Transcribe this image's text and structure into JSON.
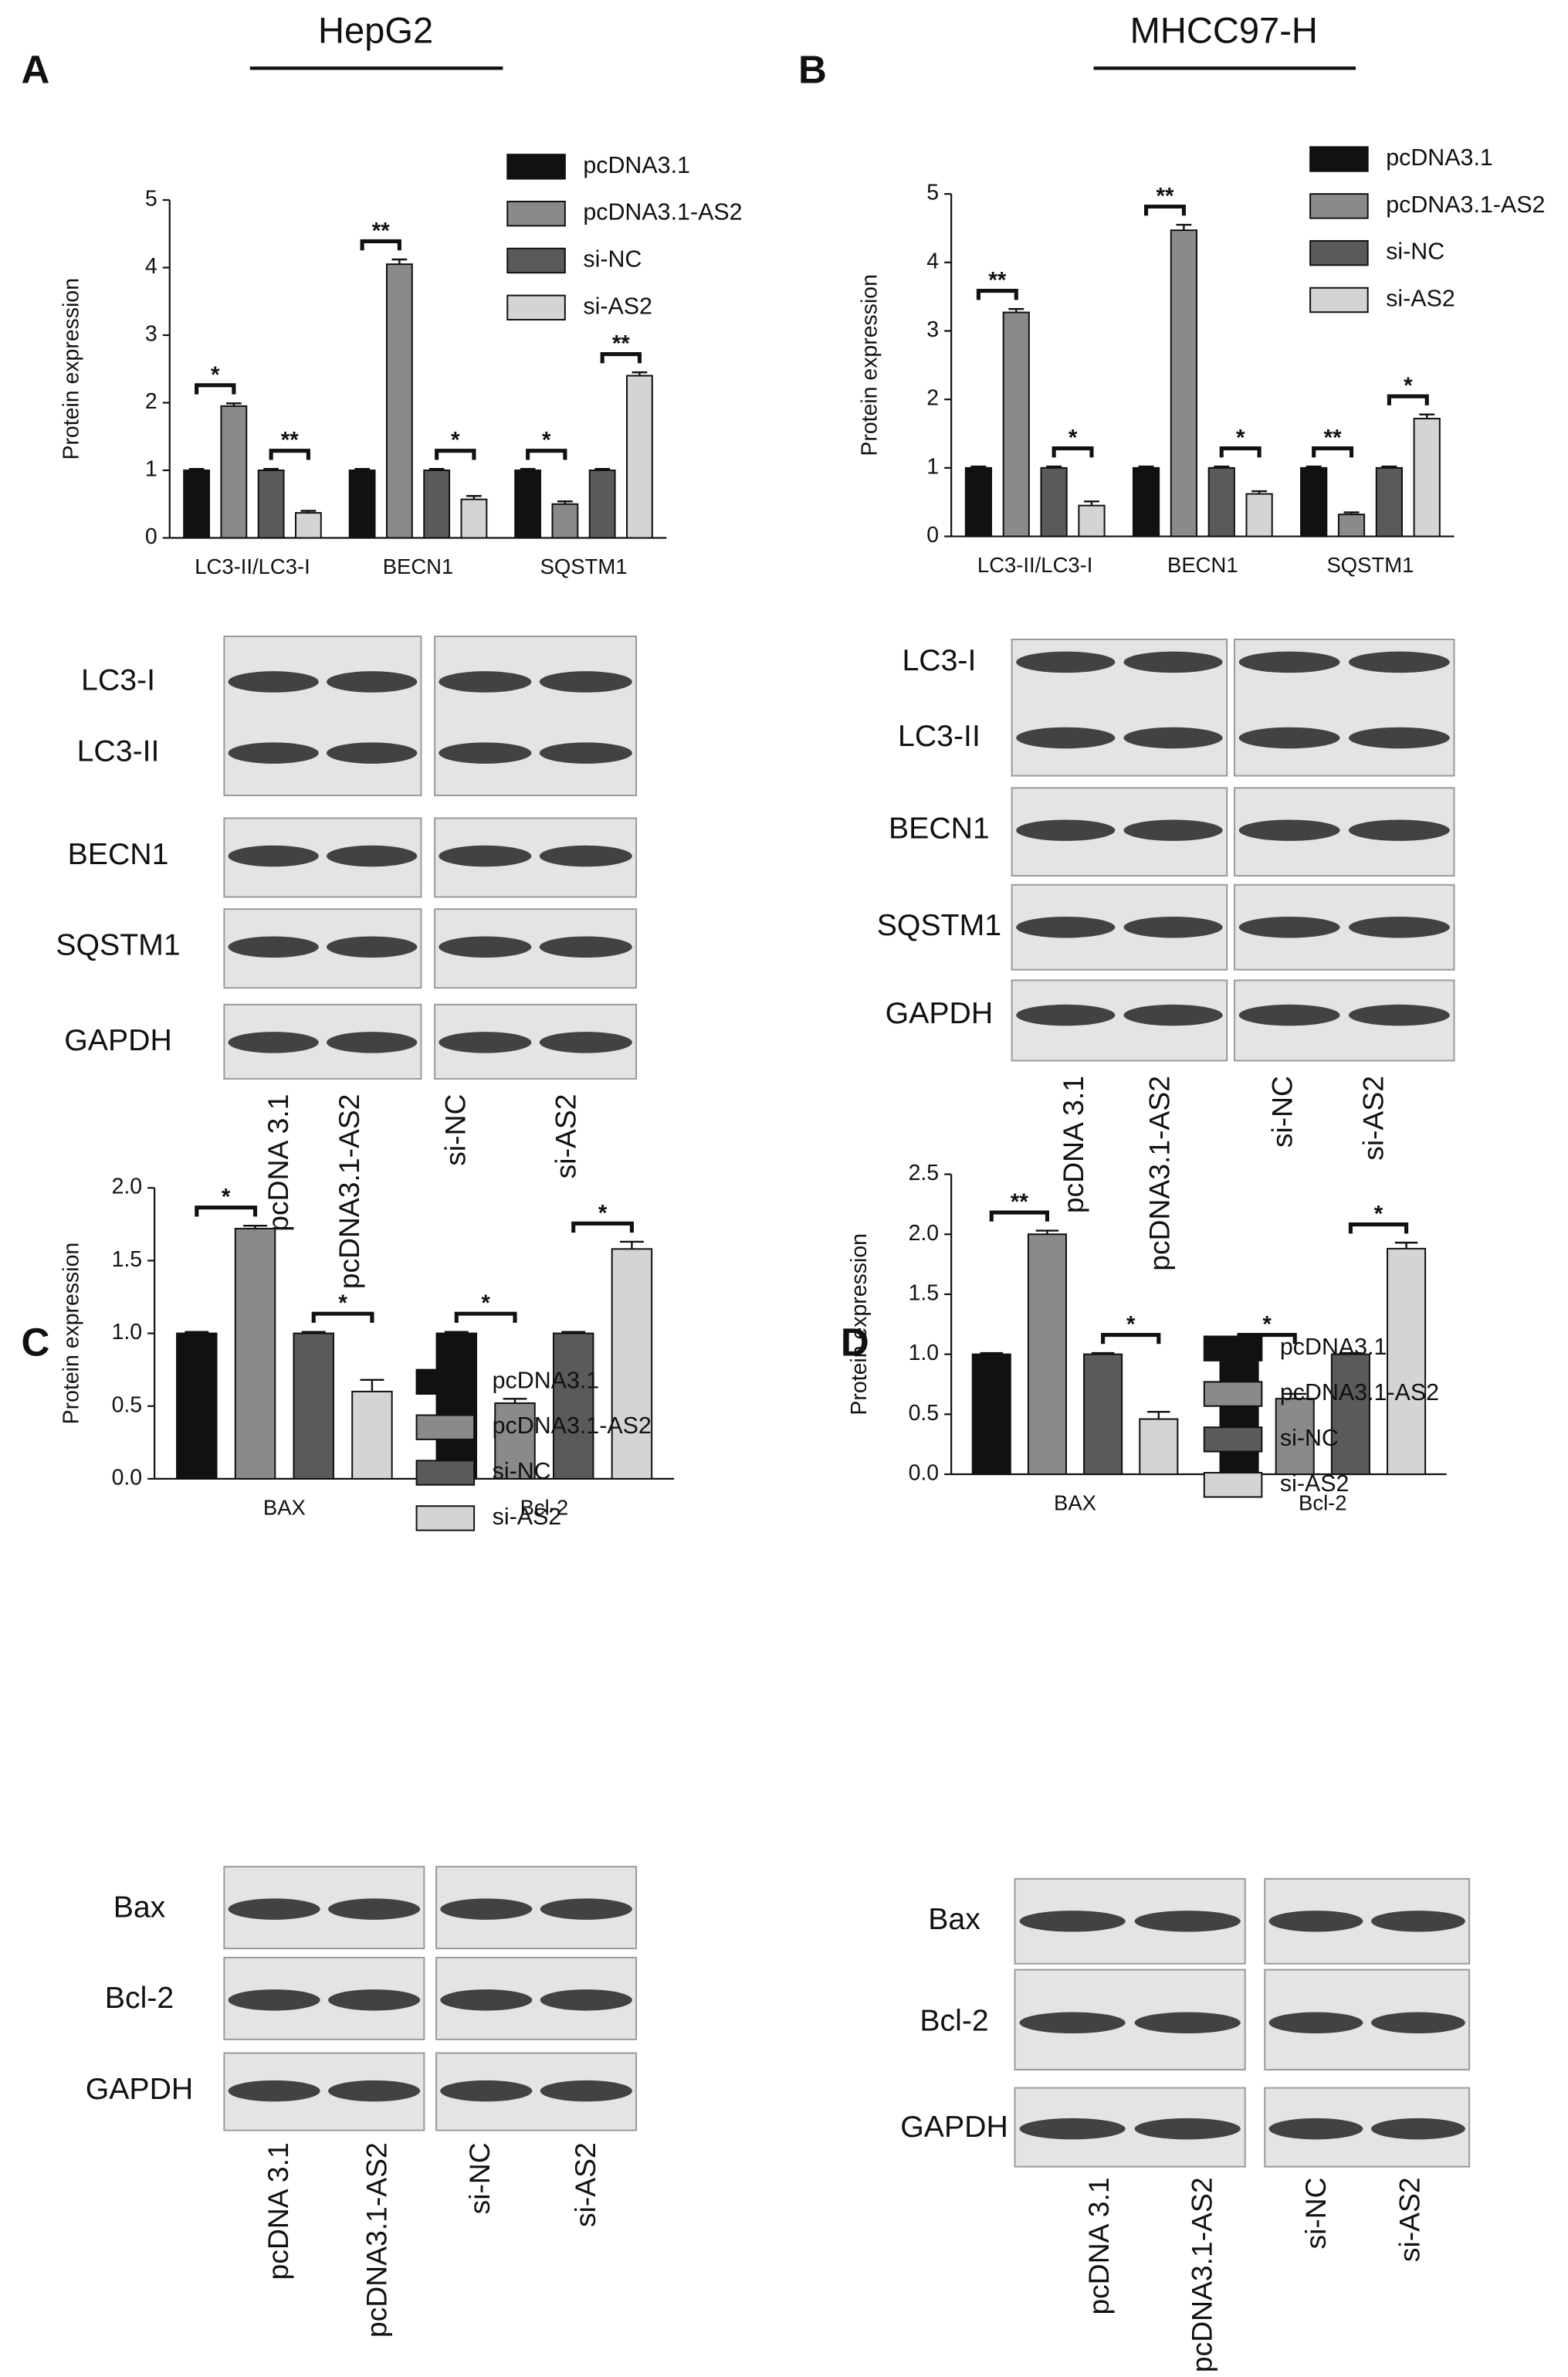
{
  "figure": {
    "headers": [
      "HepG2",
      "MHCC97-H"
    ],
    "panels": [
      {
        "letter": "A",
        "blot_labels": [
          "LC3-I",
          "LC3-II",
          "BECN1",
          "SQSTM1",
          "GAPDH"
        ],
        "lane_labels": [
          "pcDNA 3.1",
          "pcDNA3.1-AS2",
          "si-NC",
          "si-AS2"
        ]
      },
      {
        "letter": "B",
        "blot_labels": [
          "LC3-I",
          "LC3-II",
          "BECN1",
          "SQSTM1",
          "GAPDH"
        ],
        "lane_labels": [
          "pcDNA 3.1",
          "pcDNA3.1-AS2",
          "si-NC",
          "si-AS2"
        ]
      },
      {
        "letter": "C",
        "blot_labels": [
          "Bax",
          "Bcl-2",
          "GAPDH"
        ],
        "lane_labels": [
          "pcDNA 3.1",
          "pcDNA3.1-AS2",
          "si-NC",
          "si-AS2"
        ]
      },
      {
        "letter": "D",
        "blot_labels": [
          "Bax",
          "Bcl-2",
          "GAPDH"
        ],
        "lane_labels": [
          "pcDNA 3.1",
          "pcDNA3.1-AS2",
          "si-NC",
          "si-AS2"
        ]
      }
    ]
  },
  "chart_data": [
    {
      "type": "bar",
      "y_label": "Protein expression",
      "categories": [
        "LC3-II/LC3-I",
        "BECN1",
        "SQSTM1"
      ],
      "series": [
        {
          "name": "pcDNA3.1",
          "color": "#111111",
          "values": [
            1,
            1,
            1
          ],
          "errors": [
            0.02,
            0.02,
            0.02
          ]
        },
        {
          "name": "pcDNA3.1-AS2",
          "color": "#8a8a8a",
          "values": [
            1.95,
            4.05,
            0.5
          ],
          "errors": [
            0.04,
            0.07,
            0.04
          ]
        },
        {
          "name": "si-NC",
          "color": "#5a5a5a",
          "values": [
            1,
            1,
            1
          ],
          "errors": [
            0.02,
            0.02,
            0.02
          ]
        },
        {
          "name": "si-AS2",
          "color": "#d4d4d4",
          "values": [
            0.37,
            0.57,
            2.4
          ],
          "errors": [
            0.03,
            0.05,
            0.05
          ]
        }
      ],
      "significance": [
        [
          "*",
          "**"
        ],
        [
          "**",
          "*"
        ],
        [
          "*",
          "**"
        ]
      ],
      "ylim": [
        0,
        5
      ],
      "yticks": [
        0,
        1,
        2,
        3,
        4,
        5
      ]
    },
    {
      "type": "bar",
      "y_label": "Protein expression",
      "categories": [
        "LC3-II/LC3-I",
        "BECN1",
        "SQSTM1"
      ],
      "series": [
        {
          "name": "pcDNA3.1",
          "color": "#111111",
          "values": [
            1,
            1,
            1
          ],
          "errors": [
            0.02,
            0.02,
            0.02
          ]
        },
        {
          "name": "pcDNA3.1-AS2",
          "color": "#8a8a8a",
          "values": [
            3.27,
            4.47,
            0.32
          ],
          "errors": [
            0.05,
            0.08,
            0.03
          ]
        },
        {
          "name": "si-NC",
          "color": "#5a5a5a",
          "values": [
            1,
            1,
            1
          ],
          "errors": [
            0.02,
            0.02,
            0.02
          ]
        },
        {
          "name": "si-AS2",
          "color": "#d4d4d4",
          "values": [
            0.45,
            0.62,
            1.72
          ],
          "errors": [
            0.06,
            0.04,
            0.06
          ]
        }
      ],
      "significance": [
        [
          "**",
          "*"
        ],
        [
          "**",
          "*"
        ],
        [
          "**",
          "*"
        ]
      ],
      "ylim": [
        0,
        5
      ],
      "yticks": [
        0,
        1,
        2,
        3,
        4,
        5
      ]
    },
    {
      "type": "bar",
      "y_label": "Protein expression",
      "categories": [
        "BAX",
        "Bcl-2"
      ],
      "series": [
        {
          "name": "pcDNA3.1",
          "color": "#111111",
          "values": [
            1,
            1
          ],
          "errors": [
            0.01,
            0.01
          ]
        },
        {
          "name": "pcDNA3.1-AS2",
          "color": "#8a8a8a",
          "values": [
            1.72,
            0.52
          ],
          "errors": [
            0.02,
            0.03
          ]
        },
        {
          "name": "si-NC",
          "color": "#5a5a5a",
          "values": [
            1,
            1
          ],
          "errors": [
            0.01,
            0.01
          ]
        },
        {
          "name": "si-AS2",
          "color": "#d4d4d4",
          "values": [
            0.6,
            1.58
          ],
          "errors": [
            0.08,
            0.05
          ]
        }
      ],
      "significance": [
        [
          "*",
          "*"
        ],
        [
          "*",
          "*"
        ]
      ],
      "ylim": [
        0,
        2
      ],
      "yticks": [
        {
          "value": 0,
          "label": "0.0"
        },
        0.5,
        {
          "value": 1,
          "label": "1.0"
        },
        1.5,
        {
          "value": 2,
          "label": "2.0"
        }
      ]
    },
    {
      "type": "bar",
      "y_label": "Protein expression",
      "categories": [
        "BAX",
        "Bcl-2"
      ],
      "series": [
        {
          "name": "pcDNA3.1",
          "color": "#111111",
          "values": [
            1,
            1
          ],
          "errors": [
            0.01,
            0.01
          ]
        },
        {
          "name": "pcDNA3.1-AS2",
          "color": "#8a8a8a",
          "values": [
            2.0,
            0.63
          ],
          "errors": [
            0.03,
            0.04
          ]
        },
        {
          "name": "si-NC",
          "color": "#5a5a5a",
          "values": [
            1,
            1
          ],
          "errors": [
            0.01,
            0.01
          ]
        },
        {
          "name": "si-AS2",
          "color": "#d4d4d4",
          "values": [
            0.46,
            1.88
          ],
          "errors": [
            0.06,
            0.05
          ]
        }
      ],
      "significance": [
        [
          "**",
          "*"
        ],
        [
          "*",
          "*"
        ]
      ],
      "ylim": [
        0,
        2.5
      ],
      "yticks": [
        {
          "value": 0,
          "label": "0.0"
        },
        0.5,
        {
          "value": 1,
          "label": "1.0"
        },
        1.5,
        {
          "value": 2,
          "label": "2.0"
        },
        2.5
      ]
    }
  ]
}
